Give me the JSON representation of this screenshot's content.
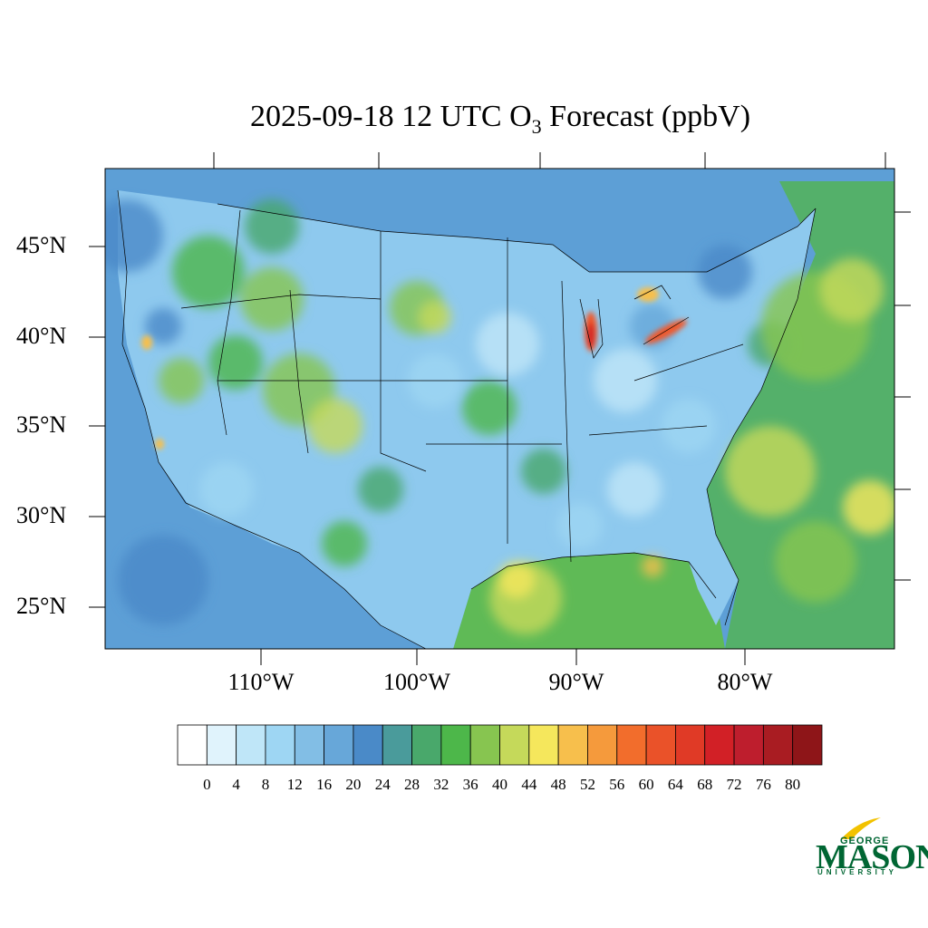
{
  "header": {
    "title_main": "2025-09-18 12 UTC O",
    "title_sub": "3",
    "title_tail": " Forecast (ppbV)"
  },
  "map": {
    "lat_labels": [
      "45°N",
      "40°N",
      "35°N",
      "30°N",
      "25°N"
    ],
    "lon_labels": [
      "110°W",
      "100°W",
      "90°W",
      "80°W"
    ],
    "colors": {
      "ocean_pacific": "#5d9fd6",
      "ocean_atlantic": "#54b06a",
      "gulf": "#5fba56",
      "land_base": "#8ec9ee",
      "land_mid": "#5aa7dc",
      "hot_spot": "#f1592a",
      "border": "#000000"
    }
  },
  "colorbar": {
    "labels": [
      "0",
      "4",
      "8",
      "12",
      "16",
      "20",
      "24",
      "28",
      "32",
      "36",
      "40",
      "44",
      "48",
      "52",
      "56",
      "60",
      "64",
      "68",
      "72",
      "76",
      "80"
    ],
    "colors": [
      "#ffffff",
      "#e0f3fc",
      "#bfe6f8",
      "#9ed6f3",
      "#82bee5",
      "#67a7d9",
      "#4a8ac8",
      "#4a9b9b",
      "#49a86b",
      "#4db74a",
      "#87c550",
      "#c5d95a",
      "#f5e75c",
      "#f7bf4c",
      "#f59a3c",
      "#f26d2c",
      "#ea5229",
      "#e03a26",
      "#d22026",
      "#be1e2d",
      "#a91c22",
      "#8e1518"
    ]
  },
  "logo": {
    "top": "GEORGE",
    "main": "MASON",
    "bottom": "UNIVERSITY"
  }
}
